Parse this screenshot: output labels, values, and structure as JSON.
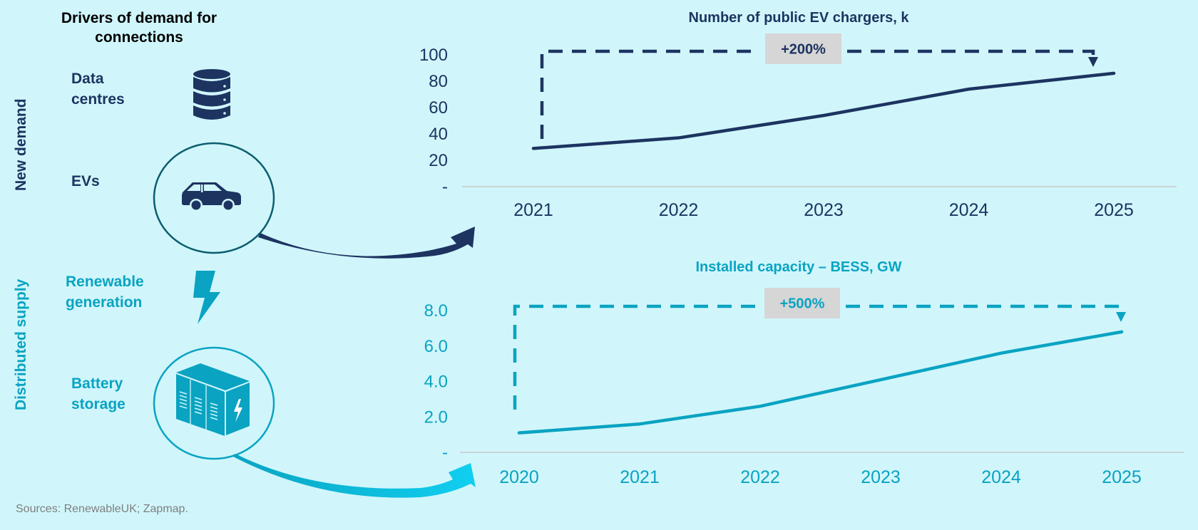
{
  "main_title": "Drivers of demand for connections",
  "side_labels": {
    "new_demand": "New demand",
    "distributed_supply": "Distributed supply"
  },
  "drivers": [
    {
      "label_line1": "Data",
      "label_line2": "centres",
      "icon": "database-icon",
      "group": "New demand"
    },
    {
      "label_line1": "EVs",
      "label_line2": "",
      "icon": "car-icon",
      "group": "New demand"
    },
    {
      "label_line1": "Renewable",
      "label_line2": "generation",
      "icon": "lightning-icon",
      "group": "Distributed supply"
    },
    {
      "label_line1": "Battery",
      "label_line2": "storage",
      "icon": "battery-container-icon",
      "group": "Distributed supply"
    }
  ],
  "colors": {
    "background": "#d0f6fb",
    "navy": "#1d3461",
    "teal": "#0aa3c2",
    "bright_cyan": "#10cff0",
    "ev_circle": "#0b5e6e",
    "axis_line": "#c8c8c8",
    "badge_bg": "#d6d6d6",
    "source_text": "#7f7f7f"
  },
  "sources": "Sources: RenewableUK; Zapmap.",
  "chart_data": [
    {
      "type": "line",
      "title": "Number of public EV chargers, k",
      "categories": [
        "2021",
        "2022",
        "2023",
        "2024",
        "2025"
      ],
      "series": [
        {
          "name": "Public EV chargers (k)",
          "values": [
            29,
            37,
            54,
            74,
            86
          ]
        }
      ],
      "ylim": [
        0,
        100
      ],
      "yticks": [
        0,
        20,
        40,
        60,
        80,
        100
      ],
      "ytick_labels": [
        "-",
        "20",
        "40",
        "60",
        "80",
        "100"
      ],
      "xlabel": "",
      "ylabel": "",
      "grid": false,
      "annotation": {
        "text": "+200%",
        "from": "2021",
        "to": "2025"
      },
      "color": "#1d3461"
    },
    {
      "type": "line",
      "title": "Installed capacity – BESS, GW",
      "categories": [
        "2020",
        "2021",
        "2022",
        "2023",
        "2024",
        "2025"
      ],
      "series": [
        {
          "name": "BESS installed capacity (GW)",
          "values": [
            1.1,
            1.6,
            2.6,
            4.1,
            5.6,
            6.8
          ]
        }
      ],
      "ylim": [
        0,
        8
      ],
      "yticks": [
        0,
        2,
        4,
        6,
        8
      ],
      "ytick_labels": [
        "-",
        "2.0",
        "4.0",
        "6.0",
        "8.0"
      ],
      "xlabel": "",
      "ylabel": "",
      "grid": false,
      "annotation": {
        "text": "+500%",
        "from": "2020",
        "to": "2025"
      },
      "color": "#0aa3c2"
    }
  ]
}
